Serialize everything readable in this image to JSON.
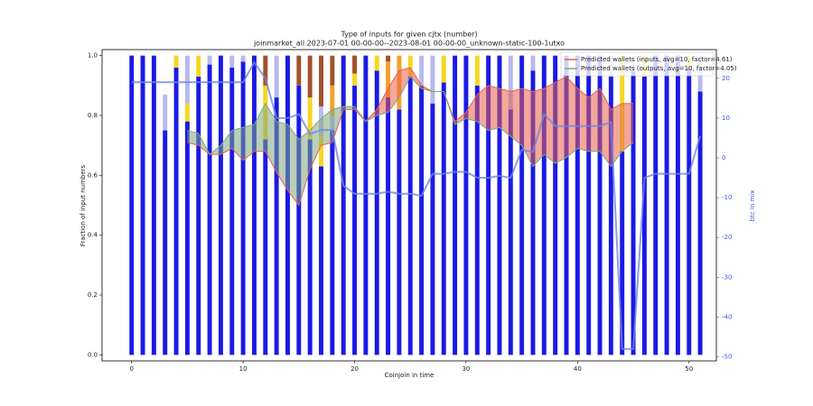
{
  "chart_data": {
    "type": "bar",
    "stacked": true,
    "title": "Type of inputs for given cjtx (number)",
    "subtitle": "joinmarket_all 2023-07-01 00-00-00--2023-08-01 00-00-00_unknown-static-100-1utxo",
    "xlabel": "Coinjoin in time",
    "ylabel": "Fraction of input numbers",
    "y2label": "btc in mix",
    "y2color": "#3d5ce0",
    "legend": "upper right",
    "x": [
      0,
      1,
      2,
      3,
      4,
      5,
      6,
      7,
      8,
      9,
      10,
      11,
      12,
      13,
      14,
      15,
      16,
      17,
      18,
      19,
      20,
      21,
      22,
      23,
      24,
      25,
      26,
      27,
      28,
      29,
      30,
      31,
      32,
      33,
      34,
      35,
      36,
      37,
      38,
      39,
      40,
      41,
      42,
      43,
      44,
      45,
      46,
      47,
      48,
      49,
      50,
      51
    ],
    "xlim": [
      -2.65,
      52.45
    ],
    "xticks": [
      0,
      10,
      20,
      30,
      40,
      50
    ],
    "ylim": [
      -0.02,
      1.02
    ],
    "yticks": [
      {
        "value": 0,
        "label": "0.0"
      },
      {
        "value": 0.2,
        "label": "0.2"
      },
      {
        "value": 0.4,
        "label": "0.4"
      },
      {
        "value": 0.6,
        "label": "0.6"
      },
      {
        "value": 0.8,
        "label": "0.8"
      },
      {
        "value": 1,
        "label": "1.0"
      }
    ],
    "y2lim": [
      -51,
      27.2
    ],
    "y2ticks": [
      -50,
      -40,
      -30,
      -20,
      -10,
      0,
      10,
      20
    ],
    "series": [
      {
        "kind": "bar",
        "color": "#1a1ae6",
        "values": [
          1,
          1,
          1,
          0.75,
          0.96,
          0.78,
          0.93,
          0.97,
          1,
          0.96,
          0.98,
          1,
          0.72,
          0.86,
          1,
          0.9,
          0.72,
          0.63,
          0.75,
          1,
          0.9,
          1,
          0.95,
          0.86,
          0.82,
          0.93,
          0.9,
          0.84,
          0.91,
          1,
          1,
          0.9,
          1,
          1,
          0.82,
          1,
          0.95,
          1,
          1,
          1,
          1,
          1,
          1,
          0.93,
          0.68,
          0.95,
          0.93,
          1,
          1,
          1,
          0.96,
          0.88
        ]
      },
      {
        "kind": "bar",
        "color": "#f7d622",
        "values": [
          0,
          0,
          0,
          0,
          0.04,
          0.06,
          0.07,
          0,
          0,
          0,
          0,
          0,
          0.18,
          0,
          0,
          0,
          0.14,
          0.1,
          0,
          0,
          0.04,
          0,
          0.05,
          0,
          0,
          0.07,
          0,
          0,
          0.09,
          0,
          0,
          0.1,
          0,
          0,
          0,
          0,
          0,
          0,
          0,
          0,
          0,
          0,
          0,
          0,
          0.32,
          0,
          0.07,
          0,
          0,
          0,
          0.04,
          0
        ]
      },
      {
        "kind": "bar",
        "color": "#b9b9ee",
        "values": [
          0,
          0,
          0,
          0.12,
          0,
          0.16,
          0,
          0.03,
          0,
          0.04,
          0.02,
          0,
          0,
          0.14,
          0,
          0,
          0,
          0.1,
          0.05,
          0,
          0,
          0,
          0,
          0,
          0,
          0,
          0.1,
          0.16,
          0,
          0,
          0,
          0,
          0,
          0,
          0.18,
          0,
          0.05,
          0,
          0,
          0,
          0,
          0,
          0,
          0.07,
          0,
          0.05,
          0,
          0,
          0,
          0,
          0,
          0.12
        ]
      },
      {
        "kind": "bar",
        "color": "#f5a02a",
        "values": [
          0,
          0,
          0,
          0,
          0,
          0,
          0,
          0,
          0,
          0,
          0,
          0,
          0,
          0,
          0,
          0,
          0,
          0,
          0.1,
          0,
          0,
          0,
          0,
          0.12,
          0.18,
          0,
          0,
          0,
          0,
          0,
          0,
          0,
          0,
          0,
          0,
          0,
          0,
          0,
          0,
          0,
          0,
          0,
          0,
          0,
          0,
          0,
          0,
          0,
          0,
          0,
          0,
          0
        ]
      },
      {
        "kind": "bar",
        "color": "#a0522d",
        "values": [
          0,
          0,
          0,
          0,
          0,
          0,
          0,
          0,
          0,
          0,
          0,
          0,
          0.1,
          0,
          0,
          0.1,
          0.14,
          0.17,
          0.1,
          0,
          0.06,
          0,
          0,
          0.02,
          0,
          0,
          0,
          0,
          0,
          0,
          0,
          0,
          0,
          0,
          0,
          0,
          0,
          0,
          0,
          0,
          0,
          0,
          0,
          0,
          0,
          0,
          0,
          0,
          0,
          0,
          0,
          0
        ]
      },
      {
        "kind": "line",
        "name": "Predicted wallets (inputs, avg=10, factor=4.61)",
        "color": "#e8604a",
        "values": [
          null,
          null,
          null,
          null,
          null,
          0.71,
          0.7,
          0.67,
          0.67,
          0.69,
          0.65,
          0.68,
          0.68,
          0.61,
          0.55,
          0.5,
          0.62,
          0.7,
          0.71,
          0.82,
          0.82,
          0.78,
          0.82,
          0.89,
          0.95,
          0.96,
          0.9,
          0.88,
          0.88,
          0.78,
          0.81,
          0.87,
          0.9,
          0.89,
          0.88,
          0.89,
          0.88,
          0.89,
          0.91,
          0.93,
          0.89,
          0.86,
          0.89,
          0.82,
          0.84,
          0.84,
          null,
          null,
          null,
          null,
          null,
          null
        ]
      },
      {
        "kind": "line",
        "name": "Predicted wallets (outputs, avg=10, factor=4.05)",
        "color": "#7fa87f",
        "values": [
          null,
          null,
          null,
          null,
          null,
          0.75,
          0.74,
          0.67,
          0.7,
          0.75,
          0.76,
          0.77,
          0.84,
          0.78,
          0.77,
          0.72,
          0.75,
          0.79,
          0.82,
          0.83,
          0.83,
          0.78,
          0.8,
          0.81,
          0.86,
          0.93,
          0.89,
          0.88,
          0.88,
          0.77,
          0.79,
          0.78,
          0.75,
          0.76,
          0.73,
          0.7,
          0.63,
          0.67,
          0.64,
          0.66,
          0.69,
          0.68,
          0.68,
          0.63,
          0.68,
          0.71,
          null,
          null,
          null,
          null,
          null,
          null
        ]
      },
      {
        "kind": "line",
        "axis": "y2",
        "color": "#6f86e0",
        "values": [
          19,
          19,
          19,
          19,
          19,
          19,
          19,
          19,
          19,
          19,
          19,
          24,
          20,
          10,
          10,
          11,
          6,
          7,
          7,
          -7,
          -9,
          -9,
          -9,
          -8.5,
          -9,
          -9,
          -9.5,
          -4,
          -4,
          -3.5,
          -3.5,
          -5,
          -5,
          -4.5,
          -5,
          2,
          1.5,
          11,
          8,
          8,
          8,
          8,
          8,
          9,
          -48,
          -48,
          -5,
          -4,
          -4,
          -4,
          -4,
          5.5
        ]
      }
    ]
  }
}
